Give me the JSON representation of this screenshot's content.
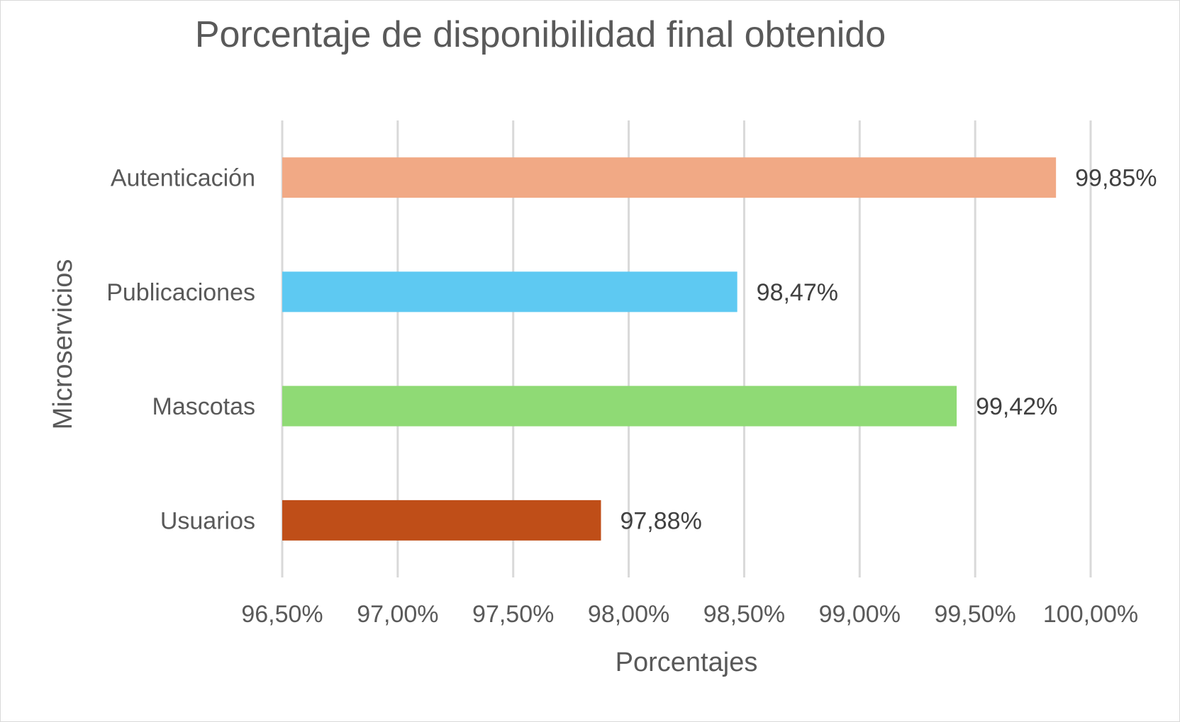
{
  "chart_data": {
    "type": "bar",
    "orientation": "horizontal",
    "title": "Porcentaje de disponibilidad final obtenido",
    "xlabel": "Porcentajes",
    "ylabel": "Microservicios",
    "categories": [
      "Autenticación",
      "Publicaciones",
      "Mascotas",
      "Usuarios"
    ],
    "values": [
      99.85,
      98.47,
      99.42,
      97.88
    ],
    "value_labels": [
      "99,85%",
      "98,47%",
      "99,42%",
      "97,88%"
    ],
    "colors": [
      "#f1a985",
      "#5ec9f2",
      "#8fda75",
      "#bf4e18"
    ],
    "xlim": [
      96.5,
      100.0
    ],
    "xticks": [
      96.5,
      97.0,
      97.5,
      98.0,
      98.5,
      99.0,
      99.5,
      100.0
    ],
    "xtick_labels": [
      "96,50%",
      "97,00%",
      "97,50%",
      "98,00%",
      "98,50%",
      "99,00%",
      "99,50%",
      "100,00%"
    ],
    "grid": "vertical",
    "legend": "none"
  }
}
